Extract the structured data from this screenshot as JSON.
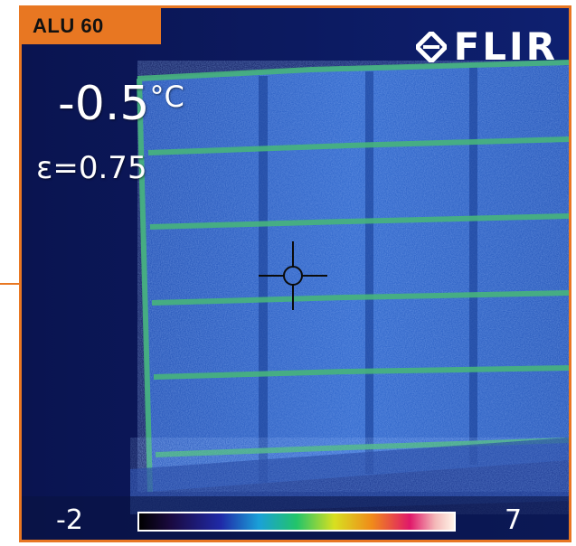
{
  "image_label": "ALU 60",
  "brand": {
    "name": "FLIR",
    "icon": "flir-diamond-logo-icon"
  },
  "readout": {
    "temperature": "-0.5",
    "unit": "°C",
    "emissivity": "ε=0.75"
  },
  "color_scale": {
    "min": "-2",
    "max": "7",
    "palette": "iron-rainbow"
  },
  "colors": {
    "accent": "#e87722",
    "background_cold": "#0c1a5a",
    "panel_blue": "#1f55b8",
    "frame_green": "#3fae7a"
  }
}
